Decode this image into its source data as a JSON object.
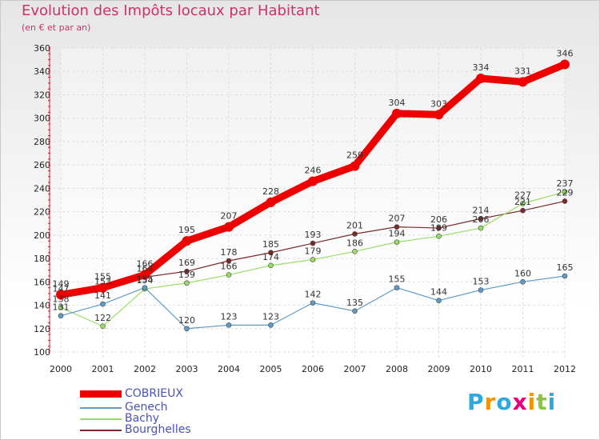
{
  "chart_data": {
    "type": "line",
    "title": "Evolution des Impôts locaux par Habitant",
    "subtitle": "(en € et par an)",
    "x": [
      "2000",
      "2001",
      "2002",
      "2003",
      "2004",
      "2005",
      "2006",
      "2007",
      "2008",
      "2009",
      "2010",
      "2011",
      "2012"
    ],
    "ylim": [
      100,
      360
    ],
    "yticks": [
      100,
      120,
      140,
      160,
      180,
      200,
      220,
      240,
      260,
      280,
      300,
      320,
      340,
      360
    ],
    "grid": true,
    "legend_position": "bottom-left",
    "series": [
      {
        "name": "COBRIEUX",
        "color": "#ee0000",
        "values": [
          149,
          155,
          166,
          195,
          207,
          228,
          246,
          259,
          304,
          303,
          334,
          331,
          346
        ]
      },
      {
        "name": "Genech",
        "color": "#5f9ac8",
        "values": [
          131,
          141,
          155,
          120,
          123,
          123,
          142,
          135,
          155,
          144,
          153,
          160,
          165
        ]
      },
      {
        "name": "Bachy",
        "color": "#99dd66",
        "values": [
          138,
          122,
          154,
          159,
          166,
          174,
          179,
          186,
          194,
          199,
          206,
          227,
          237
        ]
      },
      {
        "name": "Bourghelles",
        "color": "#7a2a2a",
        "values": [
          147,
          153,
          164,
          169,
          178,
          185,
          193,
          201,
          207,
          206,
          214,
          221,
          229
        ]
      }
    ]
  },
  "brand": {
    "letters": [
      "P",
      "r",
      "o",
      "x",
      "i",
      "t",
      "i"
    ],
    "colors": [
      "#2ea8e0",
      "#f29400",
      "#2ea8e0",
      "#e2007a",
      "#f29400",
      "#8bc53f",
      "#2ea8e0"
    ]
  }
}
